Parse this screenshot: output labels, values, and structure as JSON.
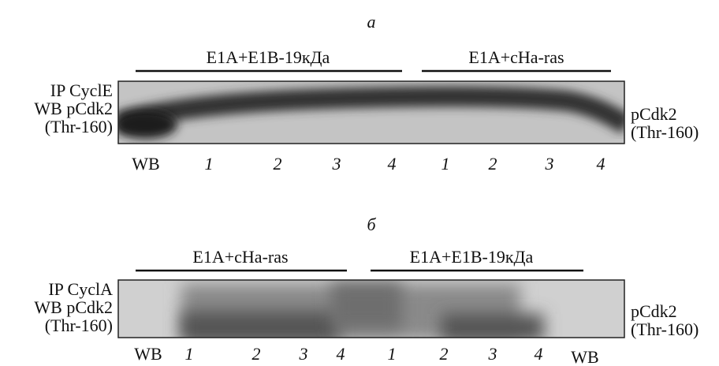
{
  "panels": [
    {
      "label": "а",
      "groups": [
        "E1A+E1B-19кДа",
        "E1A+cHa-ras"
      ],
      "left_labels": [
        "IP CyclE",
        "WB pCdk2",
        "(Thr-160)"
      ],
      "right_labels": [
        "pCdk2",
        "(Thr-160)"
      ],
      "lanes": [
        "WB",
        "1",
        "2",
        "3",
        "4",
        "1",
        "2",
        "3",
        "4"
      ]
    },
    {
      "label": "б",
      "groups": [
        "E1A+cHa-ras",
        "E1A+E1B-19кДа"
      ],
      "left_labels": [
        "IP CyclA",
        "WB pCdk2",
        "(Thr-160)"
      ],
      "right_labels": [
        "pCdk2",
        "(Thr-160)"
      ],
      "lanes": [
        "WB",
        "1",
        "2",
        "3",
        "4",
        "1",
        "2",
        "3",
        "4",
        "WB"
      ]
    }
  ]
}
